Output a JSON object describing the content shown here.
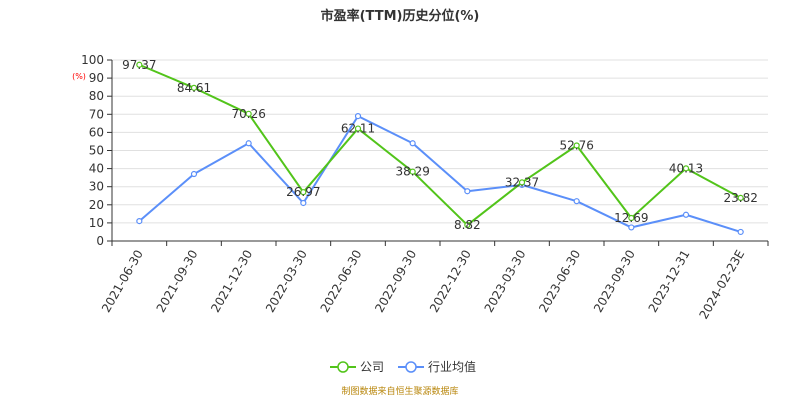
{
  "title": "市盈率(TTM)历史分位(%)",
  "y_unit": "(%)",
  "source": "制图数据来自恒生聚源数据库",
  "colors": {
    "company": "#52c41a",
    "industry": "#5b8ff9",
    "axis": "#333333",
    "grid": "#e0e0e0",
    "source": "#b8860b"
  },
  "chart_data": {
    "type": "line",
    "title": "市盈率(TTM)历史分位(%)",
    "ylabel": "(%)",
    "ylim": [
      0,
      100
    ],
    "yticks": [
      0,
      10,
      20,
      30,
      40,
      50,
      60,
      70,
      80,
      90,
      100
    ],
    "grid": true,
    "legend_position": "bottom",
    "categories": [
      "2021-06-30",
      "2021-09-30",
      "2021-12-30",
      "2022-03-30",
      "2022-06-30",
      "2022-09-30",
      "2022-12-30",
      "2023-03-30",
      "2023-06-30",
      "2023-09-30",
      "2023-12-31",
      "2024-02-23E"
    ],
    "series": [
      {
        "name": "公司",
        "color": "#52c41a",
        "values": [
          97.37,
          84.61,
          70.26,
          26.97,
          62.11,
          38.29,
          8.82,
          32.37,
          52.76,
          12.69,
          40.13,
          23.82
        ],
        "labels": [
          "97.37",
          "84.61",
          "70.26",
          "26.97",
          "62.11",
          "38.29",
          "8.82",
          "32.37",
          "52.76",
          "12.69",
          "40.13",
          "23.82"
        ]
      },
      {
        "name": "行业均值",
        "color": "#5b8ff9",
        "values": [
          11,
          37,
          54,
          21,
          69,
          54,
          27.5,
          31,
          22,
          7.5,
          14.5,
          5
        ]
      }
    ]
  }
}
